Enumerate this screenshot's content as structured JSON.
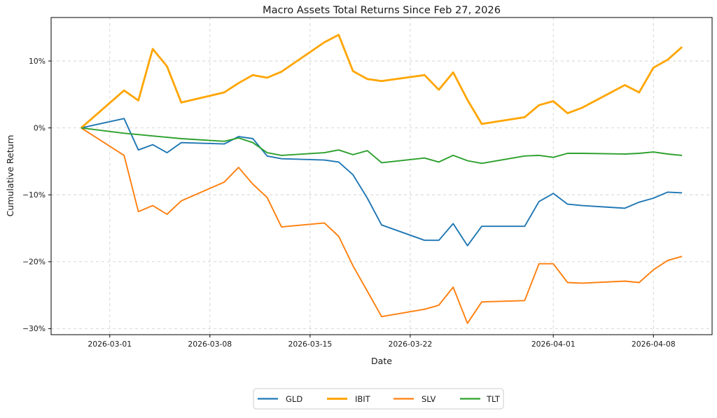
{
  "chart_data": {
    "type": "line",
    "title": "Macro Assets Total Returns Since Feb 27, 2026",
    "xlabel": "Date",
    "ylabel": "Cumulative Return",
    "grid": true,
    "legend_position": "bottom-center-outside",
    "ylim": [
      -30.9,
      16.5
    ],
    "xlim_days": [
      -2.1,
      44.1
    ],
    "y_ticks": [
      10,
      0,
      -10,
      -20,
      -30
    ],
    "y_tick_labels": [
      "10%",
      "0%",
      "−10%",
      "−20%",
      "−30%"
    ],
    "x_tick_days": [
      2,
      9,
      16,
      23,
      33,
      40
    ],
    "x_tick_labels": [
      "2026-03-01",
      "2026-03-08",
      "2026-03-15",
      "2026-03-22",
      "2026-04-01",
      "2026-04-08"
    ],
    "dates": [
      "2026-02-27",
      "2026-03-02",
      "2026-03-03",
      "2026-03-04",
      "2026-03-05",
      "2026-03-06",
      "2026-03-09",
      "2026-03-10",
      "2026-03-11",
      "2026-03-12",
      "2026-03-13",
      "2026-03-16",
      "2026-03-17",
      "2026-03-18",
      "2026-03-19",
      "2026-03-20",
      "2026-03-23",
      "2026-03-24",
      "2026-03-25",
      "2026-03-26",
      "2026-03-27",
      "2026-03-30",
      "2026-03-31",
      "2026-04-01",
      "2026-04-02",
      "2026-04-03",
      "2026-04-06",
      "2026-04-07",
      "2026-04-08",
      "2026-04-09",
      "2026-04-10"
    ],
    "day_offsets": [
      0,
      3,
      4,
      5,
      6,
      7,
      10,
      11,
      12,
      13,
      14,
      17,
      18,
      19,
      20,
      21,
      24,
      25,
      26,
      27,
      28,
      31,
      32,
      33,
      34,
      35,
      38,
      39,
      40,
      41,
      42
    ],
    "series": [
      {
        "name": "GLD",
        "color": "#1f77b4",
        "linewidth": 1.9,
        "values": [
          0,
          1.4,
          -3.3,
          -2.5,
          -3.7,
          -2.2,
          -2.4,
          -1.3,
          -1.6,
          -4.2,
          -4.6,
          -4.8,
          -5.1,
          -7.0,
          -10.5,
          -14.5,
          -16.8,
          -16.8,
          -14.3,
          -17.6,
          -14.7,
          -14.7,
          -11.0,
          -9.8,
          -11.4,
          -11.6,
          -12.0,
          -11.1,
          -10.5,
          -9.6,
          -9.7
        ]
      },
      {
        "name": "IBIT",
        "color": "#ffa500",
        "linewidth": 2.8,
        "values": [
          0,
          5.6,
          4.1,
          11.8,
          9.2,
          3.8,
          5.3,
          6.7,
          7.9,
          7.5,
          8.4,
          12.8,
          13.9,
          8.5,
          7.3,
          7.0,
          7.9,
          5.7,
          8.3,
          4.2,
          0.6,
          1.6,
          3.4,
          4.0,
          2.2,
          3.0,
          6.4,
          5.3,
          9.0,
          10.2,
          12.1
        ]
      },
      {
        "name": "SLV",
        "color": "#ff7f0e",
        "linewidth": 1.9,
        "values": [
          0,
          -4.1,
          -12.5,
          -11.6,
          -12.9,
          -10.9,
          -8.1,
          -5.9,
          -8.4,
          -10.4,
          -14.8,
          -14.2,
          -16.2,
          -20.6,
          -24.4,
          -28.2,
          -27.1,
          -26.5,
          -23.8,
          -29.2,
          -26.0,
          -25.8,
          -20.3,
          -20.3,
          -23.1,
          -23.2,
          -22.9,
          -23.1,
          -21.2,
          -19.8,
          -19.2
        ]
      },
      {
        "name": "TLT",
        "color": "#2ca02c",
        "linewidth": 1.9,
        "values": [
          0,
          -0.8,
          -1.0,
          -1.2,
          -1.4,
          -1.6,
          -2.0,
          -1.5,
          -2.2,
          -3.7,
          -4.1,
          -3.7,
          -3.3,
          -4.0,
          -3.4,
          -5.2,
          -4.5,
          -5.1,
          -4.1,
          -4.9,
          -5.3,
          -4.2,
          -4.1,
          -4.4,
          -3.8,
          -3.8,
          -3.9,
          -3.8,
          -3.6,
          -3.9,
          -4.1
        ]
      }
    ]
  }
}
